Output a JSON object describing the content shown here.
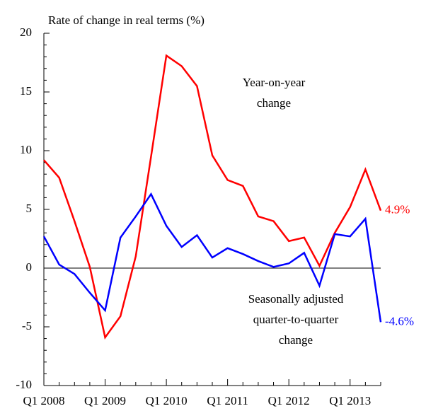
{
  "chart_data": {
    "type": "line",
    "title": "Rate of change in real terms (%)",
    "categories": [
      "Q1 2008",
      null,
      null,
      null,
      "Q1 2009",
      null,
      null,
      null,
      "Q1 2010",
      null,
      null,
      null,
      "Q1 2011",
      null,
      null,
      null,
      "Q1 2012",
      null,
      null,
      null,
      "Q1 2013",
      null,
      null
    ],
    "series": [
      {
        "name": "Year-on-year change",
        "color": "#ff0000",
        "values": [
          9.2,
          7.7,
          4.0,
          0.1,
          -5.9,
          -4.1,
          1.0,
          9.5,
          18.1,
          17.2,
          15.5,
          9.6,
          7.5,
          7.0,
          4.4,
          4.0,
          2.3,
          2.6,
          0.2,
          3.0,
          5.2,
          8.4,
          4.9
        ],
        "value_labels": [
          null,
          null,
          null,
          null,
          null,
          null,
          null,
          null,
          null,
          null,
          null,
          null,
          null,
          null,
          null,
          null,
          null,
          null,
          null,
          null,
          null,
          null,
          "4.9%"
        ]
      },
      {
        "name": "Seasonally adjusted quarter-to-quarter change",
        "color": "#0000ff",
        "values": [
          2.7,
          0.3,
          -0.5,
          -2.1,
          -3.6,
          2.6,
          4.4,
          6.3,
          3.6,
          1.8,
          2.8,
          0.9,
          1.7,
          1.2,
          0.6,
          0.1,
          0.4,
          1.3,
          -1.5,
          2.9,
          2.7,
          4.2,
          -4.6
        ],
        "value_labels": [
          null,
          null,
          null,
          null,
          null,
          null,
          null,
          null,
          null,
          null,
          null,
          null,
          null,
          null,
          null,
          null,
          null,
          null,
          null,
          null,
          null,
          null,
          "-4.6%"
        ]
      }
    ],
    "annotations": [
      [
        "Year-on-year",
        "change"
      ],
      [
        "Seasonally adjusted",
        "quarter-to-quarter",
        "change"
      ]
    ],
    "ylim": [
      -10,
      20
    ],
    "yticks": [
      -10,
      -5,
      0,
      5,
      10,
      15,
      20
    ],
    "yminorticks": [
      -9,
      -8,
      -7,
      -6,
      -4,
      -3,
      -2,
      -1,
      1,
      2,
      3,
      4,
      6,
      7,
      8,
      9,
      11,
      12,
      13,
      14,
      16,
      17,
      18,
      19
    ],
    "baseline": 0,
    "grid": false
  }
}
